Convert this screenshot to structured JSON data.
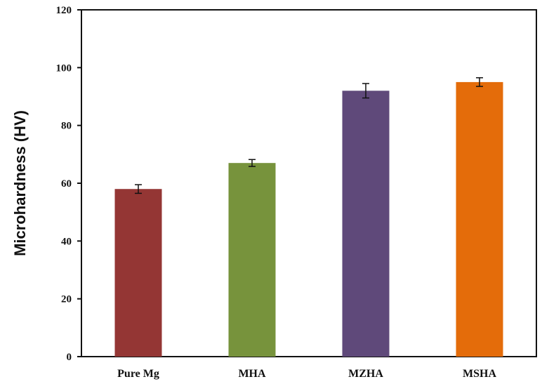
{
  "chart_data": {
    "type": "bar",
    "title": "",
    "xlabel": "",
    "ylabel": "Microhardness (HV)",
    "categories": [
      "Pure Mg",
      "MHA",
      "MZHA",
      "MSHA"
    ],
    "series": [
      {
        "values": [
          58,
          67,
          92,
          95
        ],
        "errors": [
          1.5,
          1.2,
          2.5,
          1.5
        ],
        "colors": [
          "#943634",
          "#77933c",
          "#5f497a",
          "#e46c0a"
        ]
      }
    ],
    "ylim": [
      0,
      120
    ],
    "yticks": [
      0,
      20,
      40,
      60,
      80,
      100,
      120
    ],
    "grid": false,
    "legend": "none"
  }
}
